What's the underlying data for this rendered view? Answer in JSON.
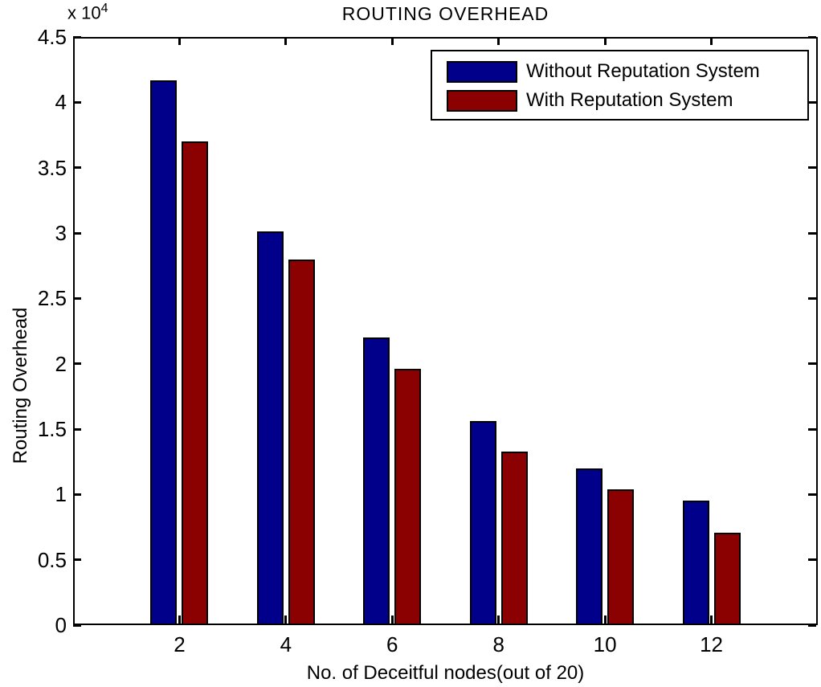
{
  "chart_data": {
    "type": "bar",
    "title": "ROUTING OVERHEAD",
    "xlabel": "No. of Deceitful nodes(out of 20)",
    "ylabel": "Routing Overhead",
    "y_scale_label": "x 10",
    "y_scale_exponent": "4",
    "categories": [
      2,
      4,
      6,
      8,
      10,
      12
    ],
    "series": [
      {
        "name": "Without Reputation System",
        "color": "#00008B",
        "values": [
          41700,
          30100,
          22000,
          15600,
          12000,
          9500
        ]
      },
      {
        "name": "With Reputation System",
        "color": "#8B0000",
        "values": [
          37000,
          28000,
          19600,
          13300,
          10400,
          7100
        ]
      }
    ],
    "xlim": [
      0,
      14
    ],
    "ylim": [
      0,
      45000
    ],
    "ytick_values": [
      0,
      5000,
      10000,
      15000,
      20000,
      25000,
      30000,
      35000,
      40000,
      45000
    ],
    "ytick_labels": [
      "0",
      "0.5",
      "1",
      "1.5",
      "2",
      "2.5",
      "3",
      "3.5",
      "4",
      "4.5"
    ],
    "legend_position": "top-right",
    "grid": false,
    "background_color": "#ffffff",
    "axis_color": "#000000"
  }
}
